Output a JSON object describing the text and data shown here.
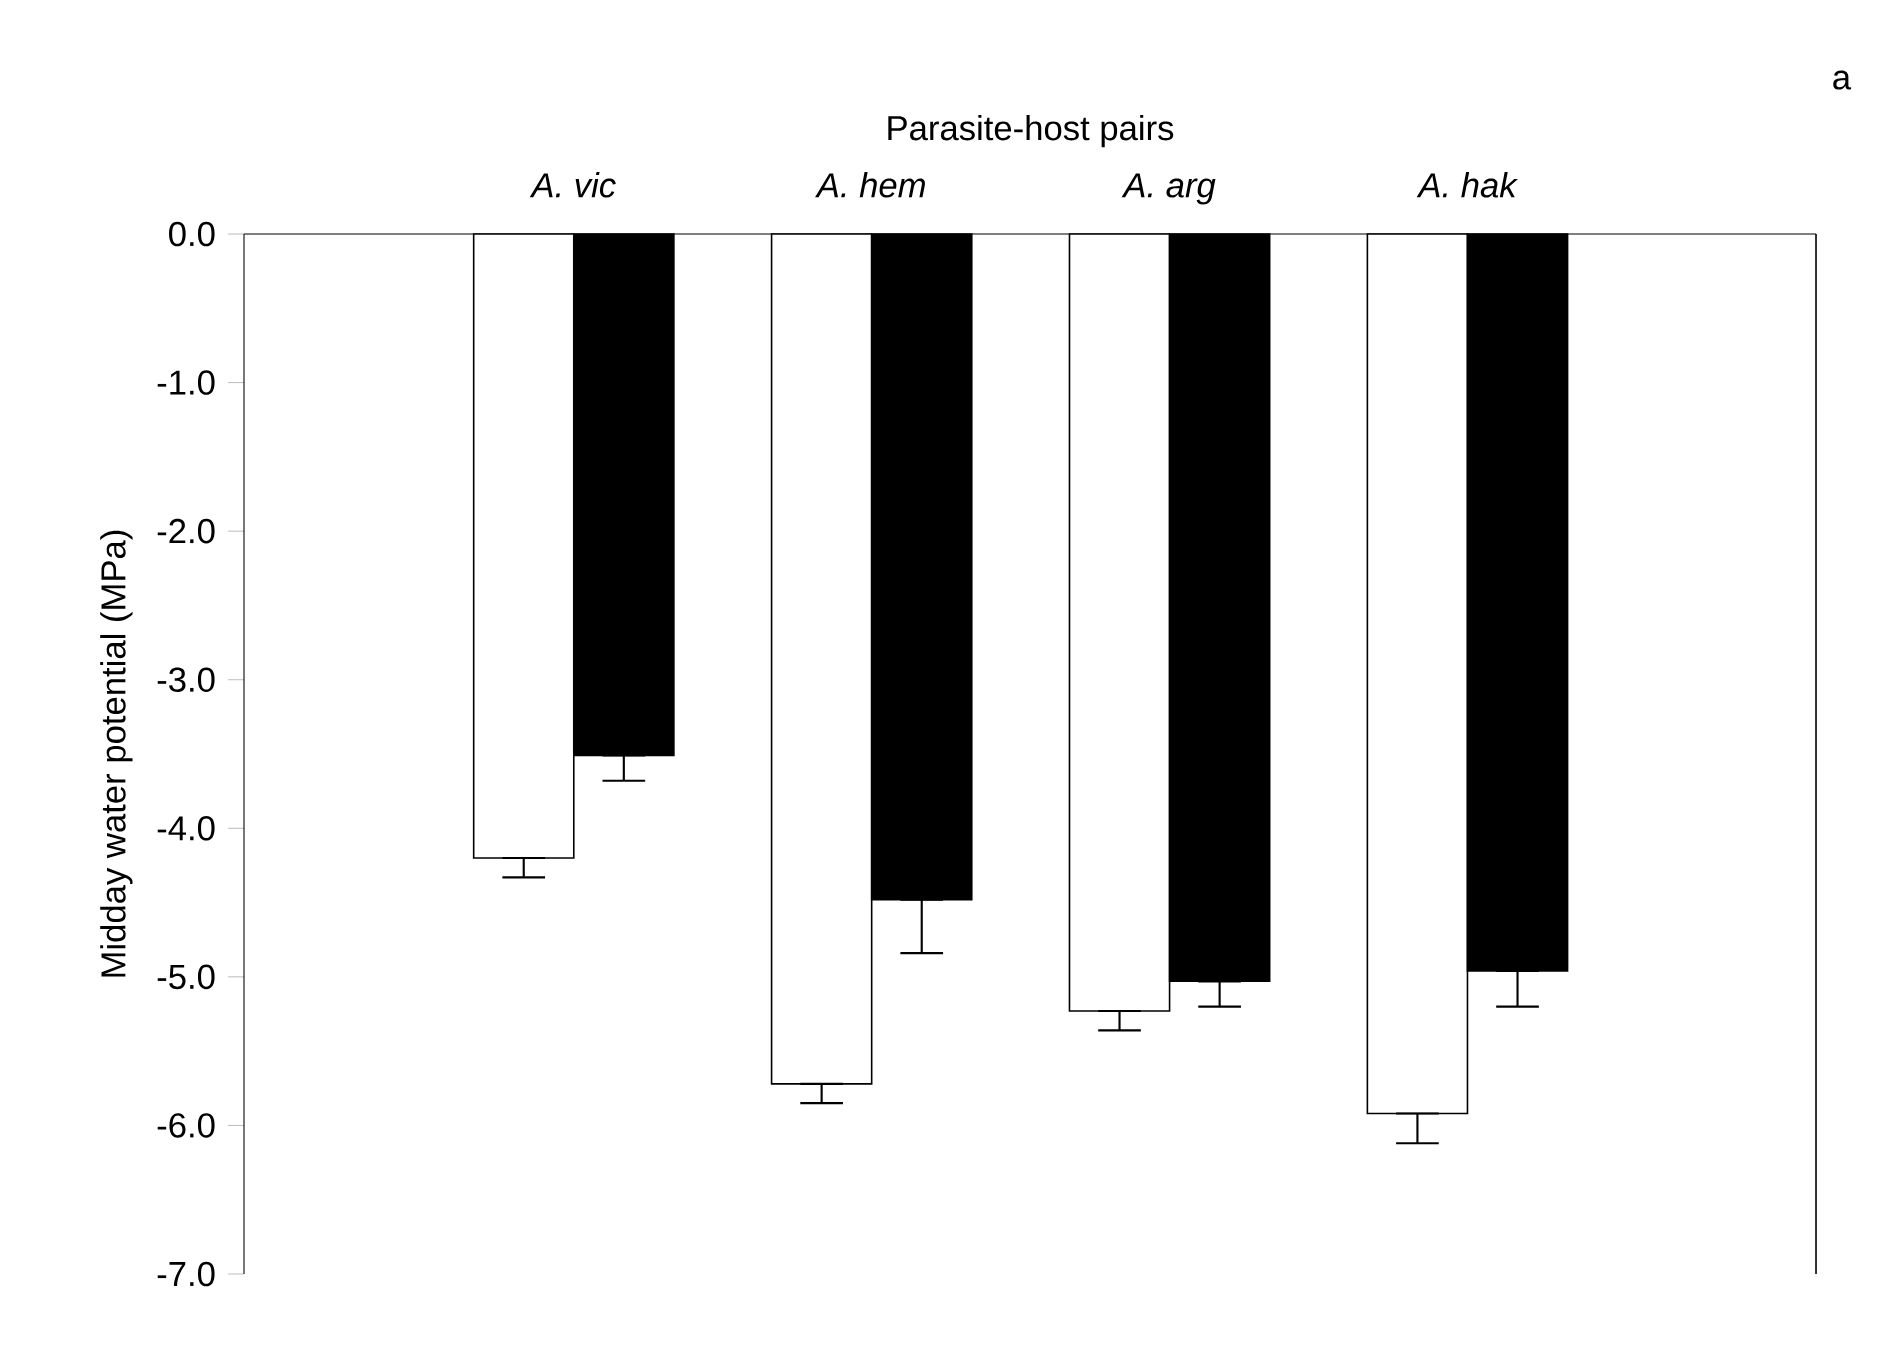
{
  "chart_data": {
    "type": "bar",
    "title": "Parasite-host pairs",
    "ylabel": "Midday water potential (MPa)",
    "categories": [
      "A. vic",
      "A. hem",
      "A. arg",
      "A. hak"
    ],
    "series": [
      {
        "color": "#ffffff",
        "values": [
          -4.2,
          -5.72,
          -5.23,
          -5.92
        ],
        "errors": [
          [
            -4.33,
            -4.2
          ],
          [
            -5.85,
            -5.72
          ],
          [
            -5.36,
            -5.23
          ],
          [
            -6.12,
            -5.92
          ]
        ]
      },
      {
        "color": "#000000",
        "values": [
          -3.51,
          -4.48,
          -5.03,
          -4.96
        ],
        "errors": [
          [
            -3.68,
            -3.51
          ],
          [
            -4.84,
            -4.48
          ],
          [
            -5.2,
            -5.03
          ],
          [
            -5.2,
            -4.96
          ]
        ]
      }
    ],
    "ylim": [
      -7,
      0
    ],
    "yticks": [
      {
        "value": 0,
        "label": "0.0"
      },
      {
        "value": -1,
        "label": "-1.0"
      },
      {
        "value": -2,
        "label": "-2.0"
      },
      {
        "value": -3,
        "label": "-3.0"
      },
      {
        "value": -4,
        "label": "-4.0"
      },
      {
        "value": -5,
        "label": "-5.0"
      },
      {
        "value": -6,
        "label": "-6.0"
      },
      {
        "value": -7,
        "label": "-7.0"
      }
    ],
    "annotations": [
      "a"
    ]
  }
}
